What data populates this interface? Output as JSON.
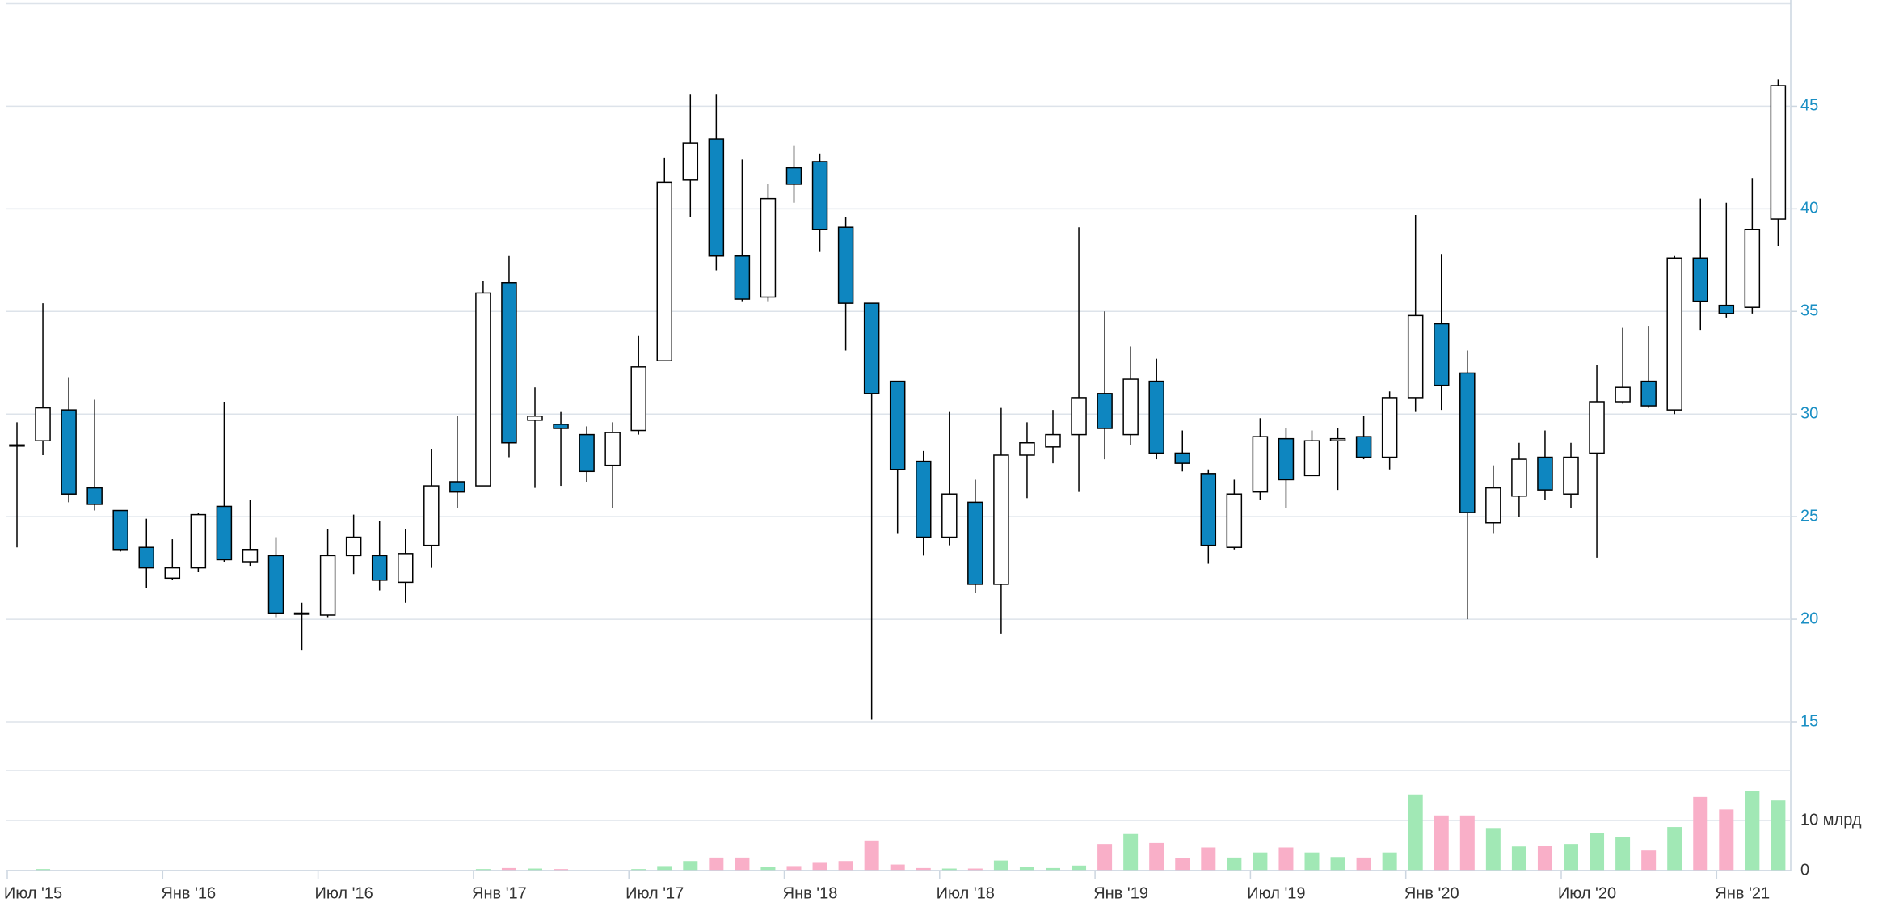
{
  "chart_data": {
    "type": "candlestick",
    "categories": [
      "Июл '15",
      null,
      null,
      null,
      null,
      null,
      "Янв '16",
      null,
      null,
      null,
      null,
      null,
      "Июл '16",
      null,
      null,
      null,
      null,
      null,
      "Янв '17",
      null,
      null,
      null,
      null,
      null,
      "Июл '17",
      null,
      null,
      null,
      null,
      null,
      "Янв '18",
      null,
      null,
      null,
      null,
      null,
      "Июл '18",
      null,
      null,
      null,
      null,
      null,
      "Янв '19",
      null,
      null,
      null,
      null,
      null,
      "Июл '19",
      null,
      null,
      null,
      null,
      null,
      "Янв '20",
      null,
      null,
      null,
      null,
      null,
      "Июл '20",
      null,
      null,
      null,
      null,
      null,
      "Янв '21",
      null,
      null
    ],
    "open": [
      28.5,
      28.7,
      30.2,
      26.4,
      25.3,
      23.5,
      22.0,
      22.5,
      25.5,
      22.8,
      23.1,
      20.3,
      20.2,
      23.1,
      23.1,
      21.8,
      23.6,
      26.7,
      26.5,
      36.4,
      29.7,
      29.5,
      29.0,
      27.5,
      29.2,
      32.6,
      41.4,
      43.4,
      37.7,
      35.7,
      42.0,
      42.3,
      39.1,
      35.4,
      31.6,
      27.7,
      24.0,
      25.7,
      21.7,
      28.0,
      28.4,
      29.0,
      31.0,
      29.0,
      31.6,
      28.1,
      27.1,
      23.5,
      26.2,
      28.8,
      27.0,
      28.7,
      28.9,
      27.9,
      30.8,
      34.4,
      32.0,
      24.7,
      26.0,
      27.9,
      26.1,
      28.1,
      30.6,
      31.6,
      30.2,
      37.6,
      35.3,
      35.2,
      39.5
    ],
    "high": [
      29.6,
      35.4,
      31.8,
      30.7,
      25.3,
      24.9,
      23.9,
      25.2,
      30.6,
      25.8,
      24.0,
      20.8,
      24.4,
      25.1,
      24.8,
      24.4,
      28.3,
      29.9,
      36.5,
      37.7,
      31.3,
      30.1,
      29.4,
      29.6,
      33.8,
      42.5,
      45.6,
      45.6,
      42.4,
      41.2,
      43.1,
      42.7,
      39.6,
      35.4,
      31.6,
      28.2,
      30.1,
      26.8,
      30.3,
      29.6,
      30.2,
      39.1,
      35.0,
      33.3,
      32.7,
      29.2,
      27.3,
      26.8,
      29.8,
      29.3,
      29.2,
      29.3,
      29.9,
      31.1,
      39.7,
      37.8,
      33.1,
      27.5,
      28.6,
      29.2,
      28.6,
      32.4,
      34.2,
      34.3,
      37.7,
      40.5,
      40.3,
      41.5,
      46.3
    ],
    "low": [
      23.5,
      28.0,
      25.7,
      25.3,
      23.3,
      21.5,
      21.9,
      22.3,
      22.8,
      22.6,
      20.1,
      18.5,
      20.1,
      22.2,
      21.4,
      20.8,
      22.5,
      25.4,
      26.5,
      27.9,
      26.4,
      26.5,
      26.7,
      25.4,
      29.0,
      32.6,
      39.6,
      37.0,
      35.5,
      35.5,
      40.3,
      37.9,
      33.1,
      15.1,
      24.2,
      23.1,
      23.6,
      21.3,
      19.3,
      25.9,
      27.6,
      26.2,
      27.8,
      28.5,
      27.8,
      27.2,
      22.7,
      23.4,
      25.8,
      25.4,
      27.0,
      26.3,
      27.8,
      27.3,
      30.1,
      30.2,
      20.0,
      24.2,
      25.0,
      25.8,
      25.4,
      23.0,
      30.5,
      30.3,
      30.0,
      34.1,
      34.7,
      34.9,
      38.2
    ],
    "close": [
      28.5,
      30.3,
      26.1,
      25.6,
      23.4,
      22.5,
      22.5,
      25.1,
      22.9,
      23.4,
      20.3,
      20.3,
      23.1,
      24.0,
      21.9,
      23.2,
      26.5,
      26.2,
      35.9,
      28.6,
      29.9,
      29.3,
      27.2,
      29.1,
      32.3,
      41.3,
      43.2,
      37.7,
      35.6,
      40.5,
      41.2,
      39.0,
      35.4,
      31.0,
      27.3,
      24.0,
      26.1,
      21.7,
      28.0,
      28.6,
      29.0,
      30.8,
      29.3,
      31.7,
      28.1,
      27.6,
      23.6,
      26.1,
      28.9,
      26.8,
      28.7,
      28.8,
      27.9,
      30.8,
      34.8,
      31.4,
      25.2,
      26.4,
      27.8,
      26.3,
      27.9,
      30.6,
      31.3,
      30.4,
      37.6,
      35.5,
      34.9,
      39.0,
      46.0
    ],
    "volume": [
      0,
      0.3,
      0,
      0,
      0,
      0,
      0,
      0,
      0,
      0,
      0,
      0,
      0,
      0,
      0,
      0,
      0,
      0,
      0.3,
      0.5,
      0.4,
      0.3,
      0,
      0,
      0.3,
      0.9,
      1.9,
      2.6,
      2.6,
      0.7,
      0.9,
      1.7,
      1.9,
      6.0,
      1.2,
      0.5,
      0.4,
      0.4,
      2.0,
      0.8,
      0.5,
      1.0,
      5.3,
      7.3,
      5.5,
      2.5,
      4.6,
      2.6,
      3.6,
      4.6,
      3.6,
      2.7,
      2.6,
      3.6,
      15.2,
      11.0,
      11.0,
      8.5,
      4.8,
      5.0,
      5.3,
      7.5,
      6.7,
      4.0,
      8.7,
      14.7,
      12.2,
      15.9,
      14.0
    ],
    "ylim": [
      15,
      50
    ],
    "yticks": [
      15,
      20,
      25,
      30,
      35,
      40,
      45
    ],
    "volume_ylim": [
      0,
      20
    ],
    "volume_yticks": [
      0,
      {
        "value": 10,
        "label": "10 млрд"
      }
    ],
    "up_color": "#ffffff",
    "down_color": "#0e86c0",
    "volume_up_color": "#a1e8b5",
    "volume_down_color": "#f9afc8",
    "grid": true
  }
}
